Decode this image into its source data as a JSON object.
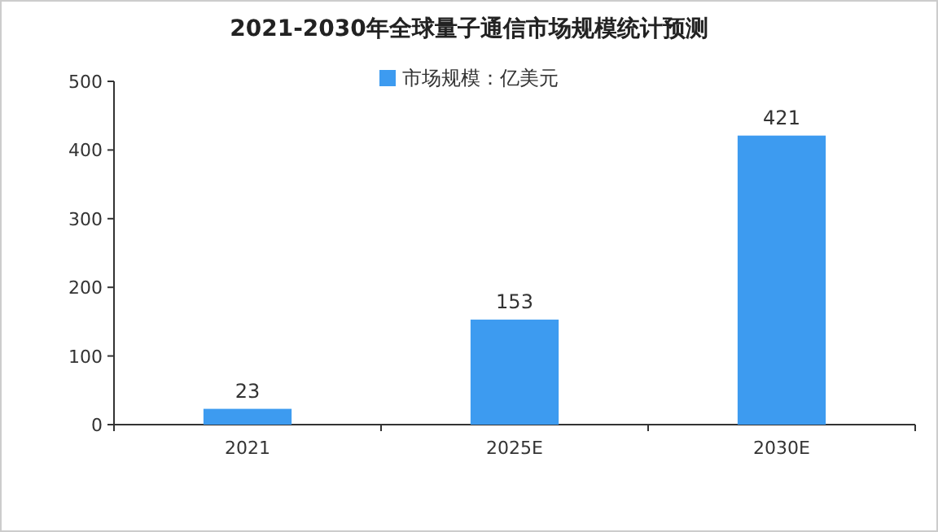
{
  "chart_data": {
    "type": "bar",
    "title": "2021-2030年全球量子通信市场规模统计预测",
    "categories": [
      "2021",
      "2025E",
      "2030E"
    ],
    "series": [
      {
        "name": "市场规模：亿美元",
        "color": "#3d9bf0",
        "values": [
          23,
          153,
          421
        ]
      }
    ],
    "ylim": [
      0,
      500
    ],
    "yticks": [
      0,
      100,
      200,
      300,
      400,
      500
    ],
    "grid": false,
    "legend": "top",
    "data_labels": true
  }
}
